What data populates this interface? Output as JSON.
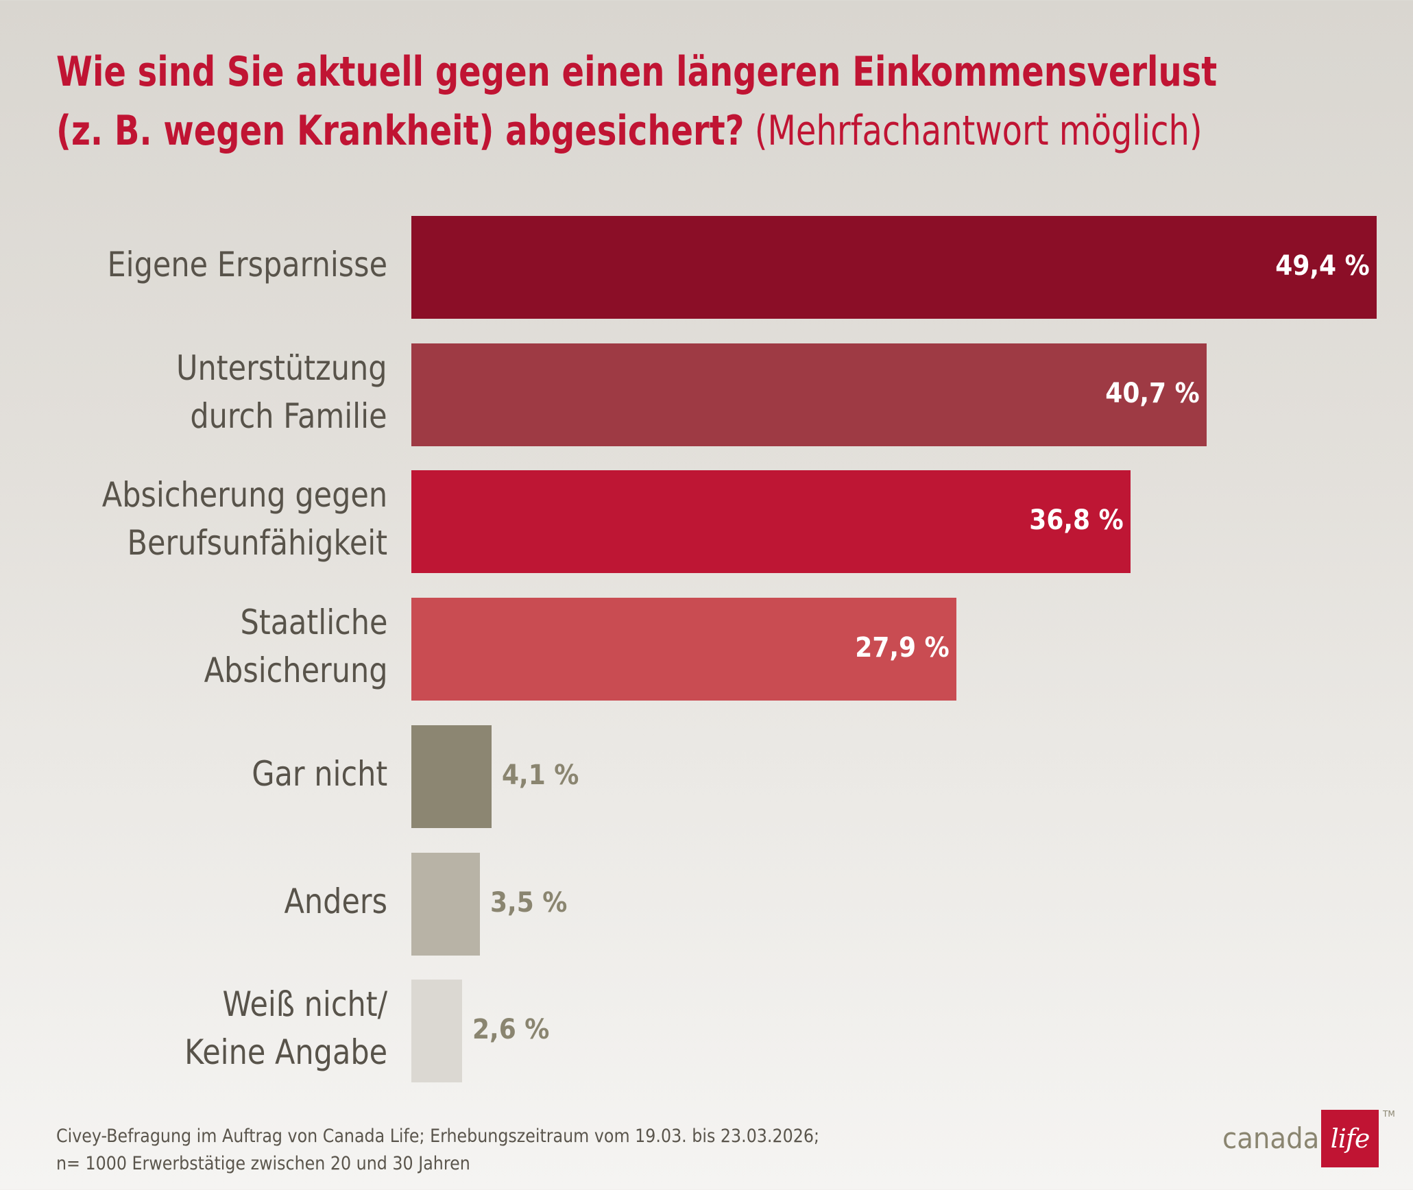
{
  "title": {
    "line1": "Wie sind Sie aktuell gegen einen längeren Einkommensverlust",
    "line2_bold": "(z. B. wegen Krankheit) abgesichert?",
    "line2_normal": " (Mehrfachantwort möglich)"
  },
  "chart_data": {
    "type": "bar",
    "orientation": "horizontal",
    "title": "Wie sind Sie aktuell gegen einen längeren Einkommensverlust (z. B. wegen Krankheit) abgesichert? (Mehrfachantwort möglich)",
    "xlabel": "",
    "ylabel": "",
    "unit": "%",
    "grid": false,
    "legend": "none",
    "xlim": [
      0,
      50
    ],
    "categories": [
      [
        "Eigene Ersparnisse"
      ],
      [
        "Unterstützung",
        "durch Familie"
      ],
      [
        "Absicherung gegen",
        "Berufsunfähigkeit"
      ],
      [
        "Staatliche",
        "Absicherung"
      ],
      [
        "Gar nicht"
      ],
      [
        "Anders"
      ],
      [
        "Weiß nicht/",
        "Keine Angabe"
      ]
    ],
    "values": [
      49.4,
      40.7,
      36.8,
      27.9,
      4.1,
      3.5,
      2.6
    ],
    "value_labels": [
      "49,4 %",
      "40,7 %",
      "36,8 %",
      "27,9 %",
      "4,1 %",
      "3,5 %",
      "2,6 %"
    ],
    "colors": [
      "#8b0e27",
      "#9e3a44",
      "#be1634",
      "#c94c52",
      "#8c8672",
      "#b8b3a6",
      "#dbd8d2"
    ],
    "label_inside": [
      true,
      true,
      true,
      true,
      false,
      false,
      false
    ]
  },
  "colors": {
    "title": "#c01433",
    "label_text": "#58534a",
    "value_inside": "#ffffff",
    "value_outside": "#8a8570",
    "brand_red": "#c01433"
  },
  "footer": {
    "line1": "Civey-Befragung im Auftrag von Canada Life; Erhebungszeitraum vom 19.03. bis 23.03.2026;",
    "line2": "n= 1000 Erwerbstätige zwischen 20 und 30 Jahren"
  },
  "logo": {
    "word": "canada",
    "script": "life",
    "trademark": "TM"
  }
}
